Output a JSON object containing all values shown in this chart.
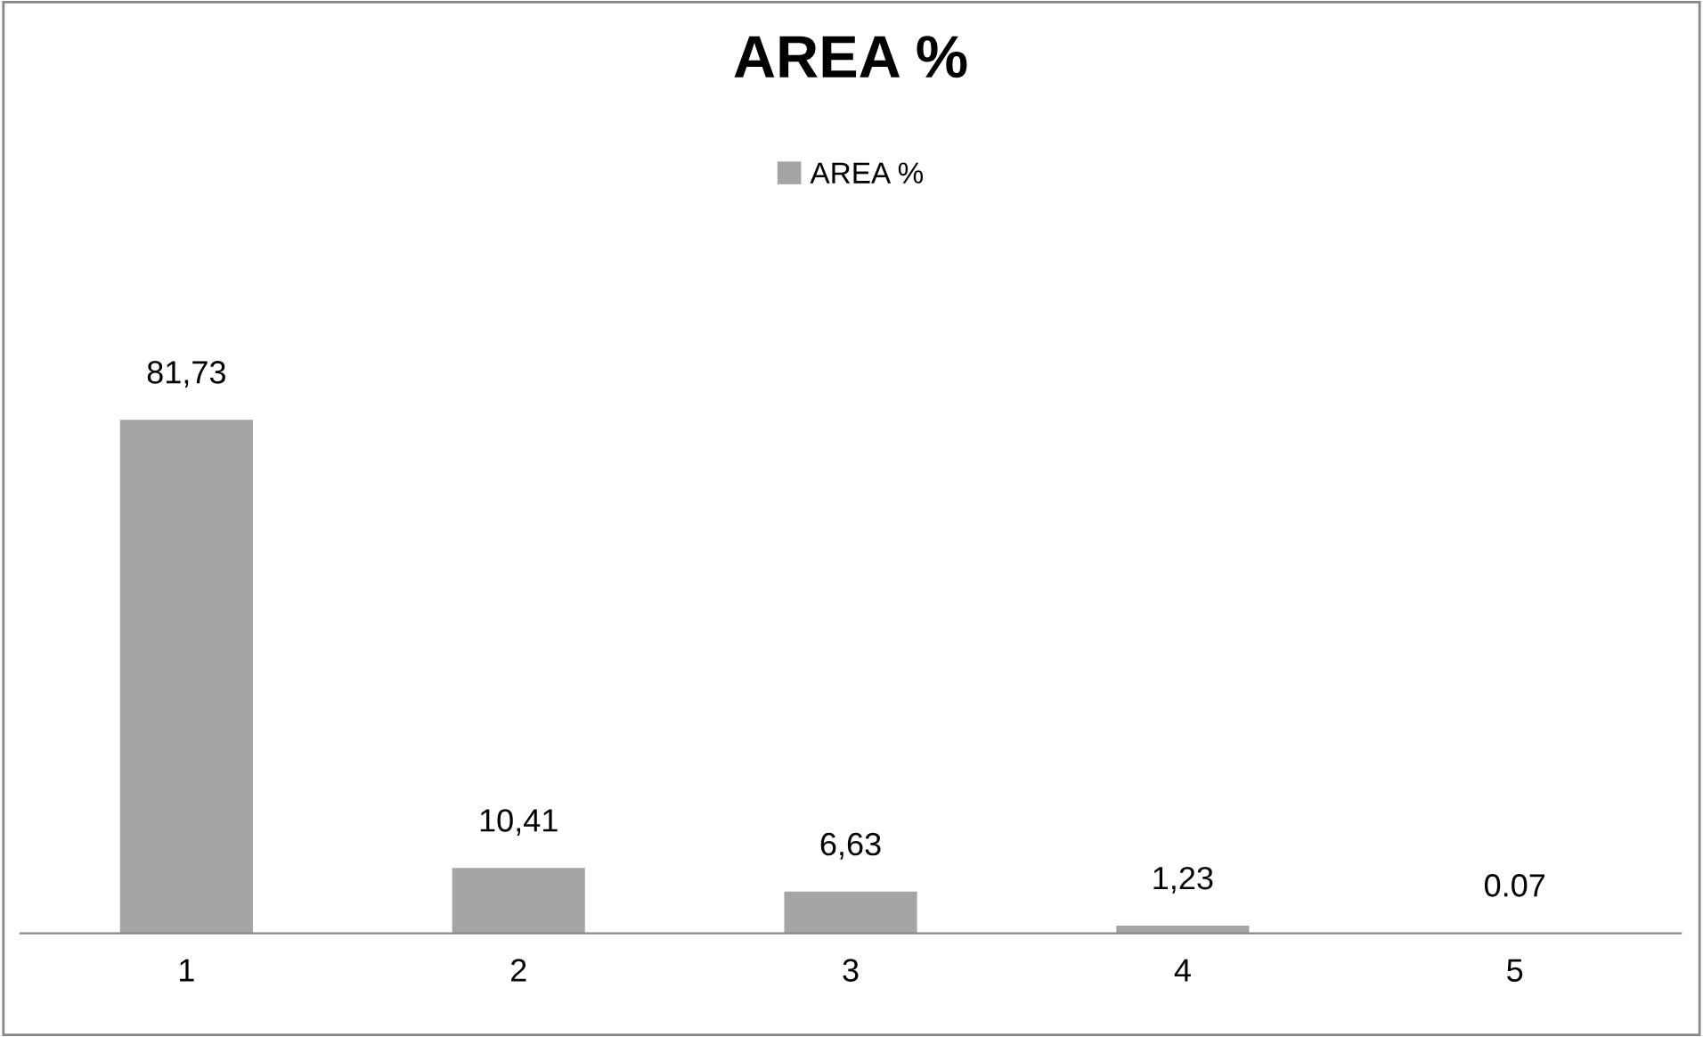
{
  "chart_data": {
    "type": "bar",
    "title": "AREA %",
    "categories": [
      "1",
      "2",
      "3",
      "4",
      "5"
    ],
    "series": [
      {
        "name": "AREA %",
        "color": "#a5a5a5",
        "values": [
          81.73,
          10.41,
          6.63,
          1.23,
          0.07
        ],
        "value_labels": [
          "81,73",
          "10,41",
          "6,63",
          "1,23",
          "0.07"
        ]
      }
    ],
    "legend": "top",
    "grid": false,
    "tick_labels": "x"
  }
}
